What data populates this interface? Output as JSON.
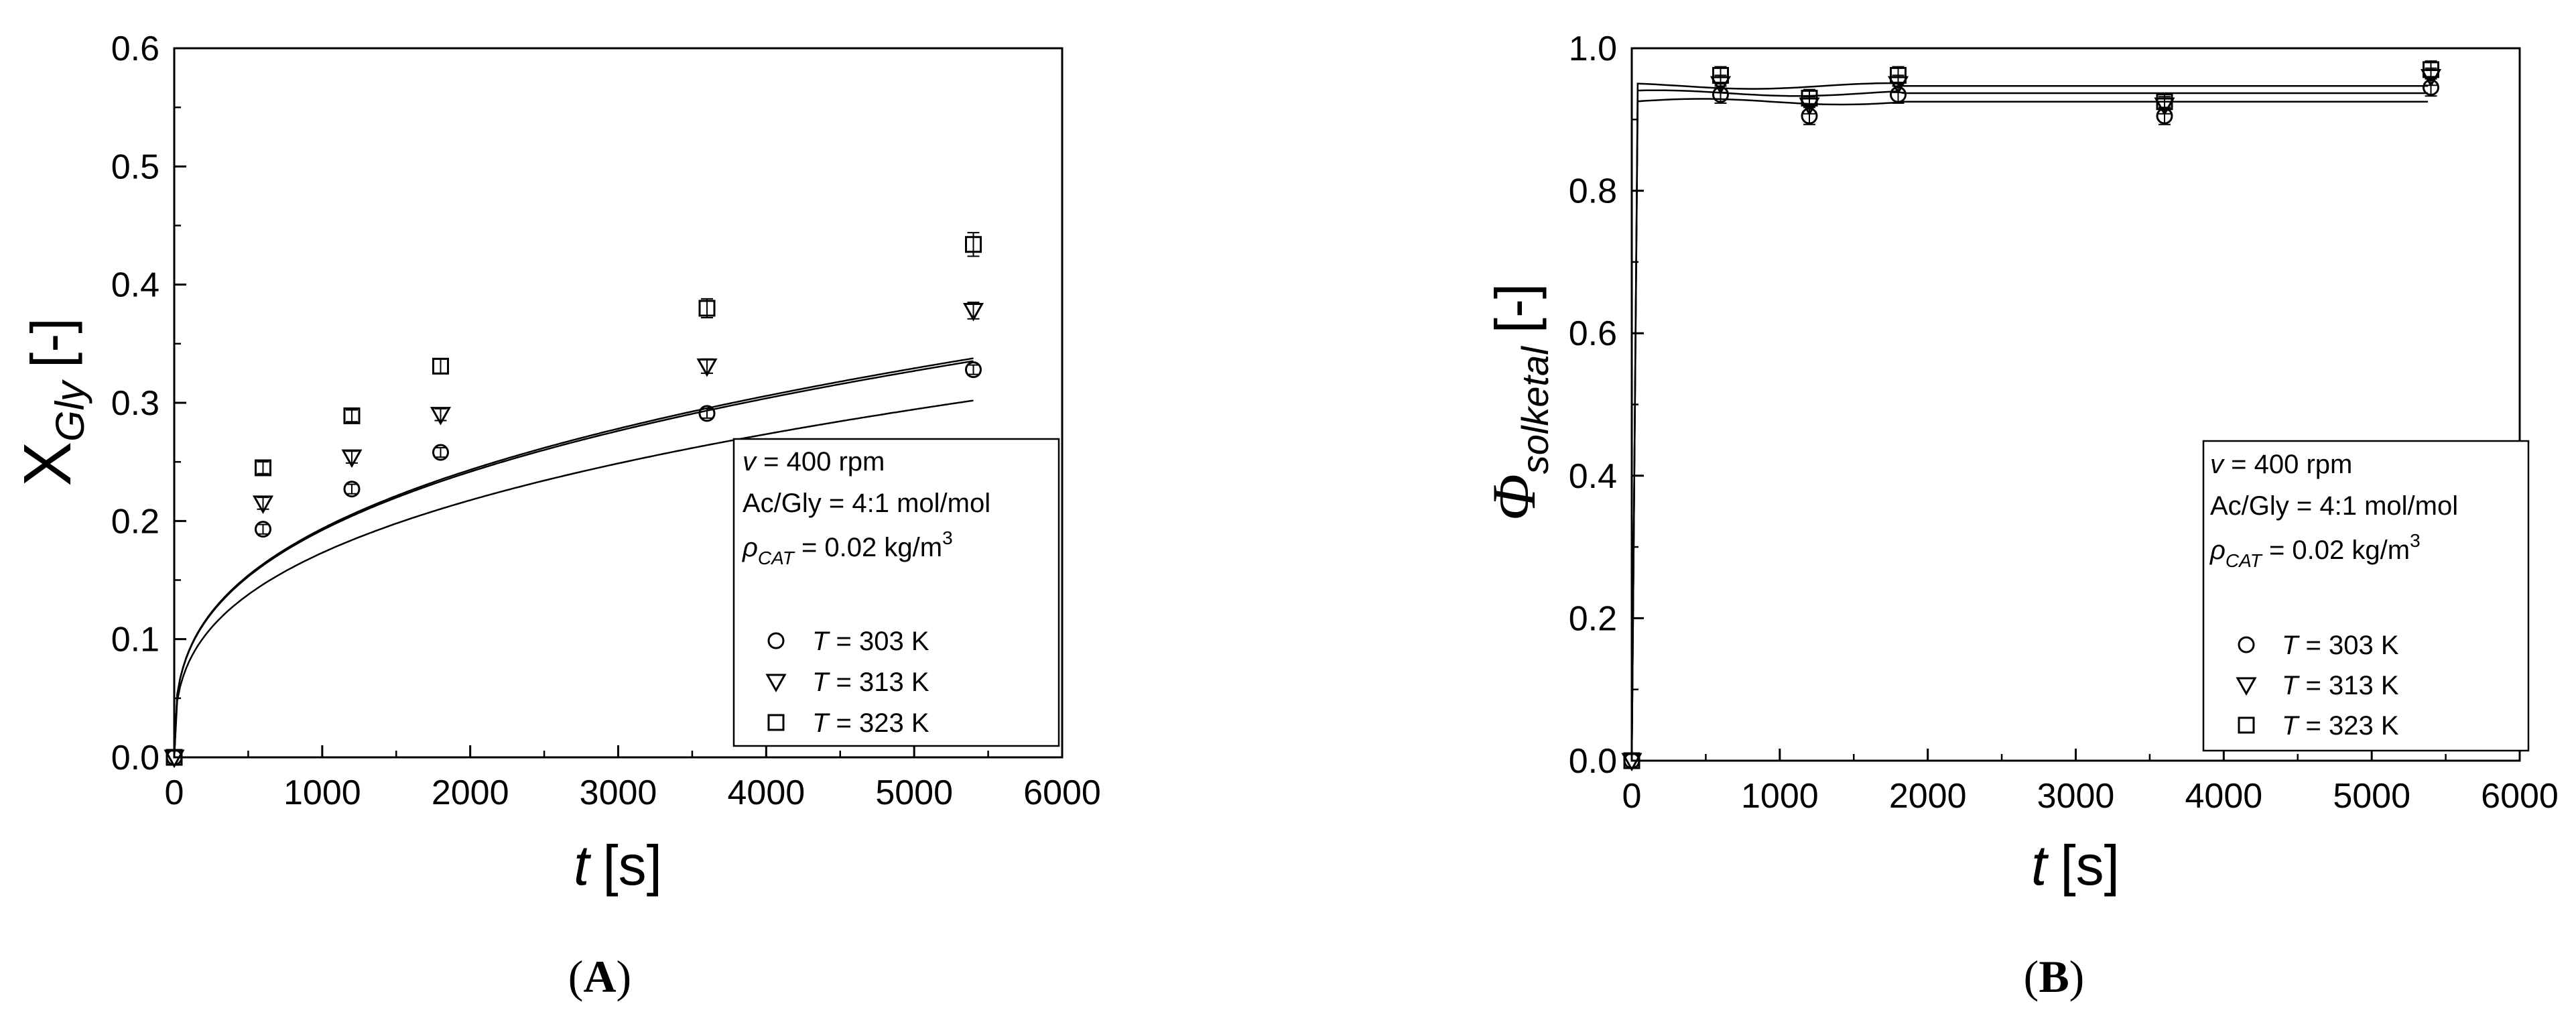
{
  "panels": [
    {
      "label_parts": [
        "(",
        "A",
        ")"
      ],
      "ylabel": {
        "main": "X",
        "sub": "Gly",
        "unit": "[-]"
      },
      "xlabel": {
        "main": "t",
        "unit": "[s]"
      },
      "info_box": {
        "line1": {
          "var": "v",
          "text": " = 400 rpm"
        },
        "line2": "Ac/Gly = 4:1 mol/mol",
        "line3": {
          "var": "ρ",
          "sub": "CAT",
          "text": " = 0.02 kg/m",
          "sup": "3"
        }
      },
      "legend": [
        {
          "marker": "circle",
          "var": "T",
          "text": " = 303 K"
        },
        {
          "marker": "triangle-down",
          "var": "T",
          "text": " = 313 K"
        },
        {
          "marker": "square",
          "var": "T",
          "text": " = 323 K"
        }
      ]
    },
    {
      "label_parts": [
        "(",
        "B",
        ")"
      ],
      "ylabel": {
        "main": "Φ",
        "sub": "solketal",
        "unit": "[-]"
      },
      "xlabel": {
        "main": "t",
        "unit": "[s]"
      },
      "info_box": {
        "line1": {
          "var": "v",
          "text": " = 400 rpm"
        },
        "line2": "Ac/Gly = 4:1 mol/mol",
        "line3": {
          "var": "ρ",
          "sub": "CAT",
          "text": " = 0.02 kg/m",
          "sup": "3"
        }
      },
      "legend": [
        {
          "marker": "circle",
          "var": "T",
          "text": " = 303 K"
        },
        {
          "marker": "triangle-down",
          "var": "T",
          "text": " = 313 K"
        },
        {
          "marker": "square",
          "var": "T",
          "text": " = 323 K"
        }
      ]
    }
  ],
  "chart_data": [
    {
      "type": "scatter",
      "panel": "A",
      "xlim": [
        0,
        6000
      ],
      "ylim": [
        0,
        0.6
      ],
      "xticks": [
        0,
        1000,
        2000,
        3000,
        4000,
        5000,
        6000
      ],
      "yticks": [
        0.0,
        0.1,
        0.2,
        0.3,
        0.4,
        0.5,
        0.6
      ],
      "ytick_labels": [
        "0.0",
        "0.1",
        "0.2",
        "0.3",
        "0.4",
        "0.5",
        "0.6"
      ],
      "grid": false,
      "series": [
        {
          "name": "T = 303 K",
          "marker": "circle",
          "x": [
            0,
            600,
            1200,
            1800,
            3600,
            5400
          ],
          "y": [
            0.0,
            0.193,
            0.227,
            0.258,
            0.291,
            0.328
          ],
          "err": [
            0,
            0.004,
            0.004,
            0.004,
            0.004,
            0.004
          ],
          "fit_a": 0.0228,
          "fit_b": 0.309
        },
        {
          "name": "T = 313 K",
          "marker": "triangle-down",
          "x": [
            0,
            600,
            1200,
            1800,
            3600,
            5400
          ],
          "y": [
            0.0,
            0.215,
            0.254,
            0.29,
            0.331,
            0.378
          ],
          "err": [
            0,
            0.005,
            0.005,
            0.005,
            0.006,
            0.007
          ],
          "fit_a": 0.0213,
          "fit_b": 0.345
        },
        {
          "name": "T = 323 K",
          "marker": "square",
          "x": [
            0,
            600,
            1200,
            1800,
            3600,
            5400
          ],
          "y": [
            0.0,
            0.245,
            0.289,
            0.331,
            0.38,
            0.434
          ],
          "err": [
            0,
            0.005,
            0.005,
            0.006,
            0.008,
            0.01
          ],
          "fit_a": 0.0223,
          "fit_b": 0.343
        }
      ]
    },
    {
      "type": "scatter",
      "panel": "B",
      "xlim": [
        0,
        6000
      ],
      "ylim": [
        0,
        1.0
      ],
      "xticks": [
        0,
        1000,
        2000,
        3000,
        4000,
        5000,
        6000
      ],
      "yticks": [
        0.0,
        0.2,
        0.4,
        0.6,
        0.8,
        1.0
      ],
      "ytick_labels": [
        "0.0",
        "0.2",
        "0.4",
        "0.6",
        "0.8",
        "1.0"
      ],
      "grid": false,
      "series": [
        {
          "name": "T = 303 K",
          "marker": "circle",
          "x": [
            0,
            600,
            1200,
            1800,
            3600,
            5400
          ],
          "y": [
            0.0,
            0.935,
            0.905,
            0.935,
            0.905,
            0.945
          ],
          "err": [
            0,
            0.012,
            0.012,
            0.012,
            0.012,
            0.012
          ],
          "fit_level": 0.925
        },
        {
          "name": "T = 313 K",
          "marker": "triangle-down",
          "x": [
            0,
            600,
            1200,
            1800,
            3600,
            5400
          ],
          "y": [
            0.0,
            0.95,
            0.92,
            0.95,
            0.92,
            0.96
          ],
          "err": [
            0,
            0.012,
            0.012,
            0.012,
            0.012,
            0.012
          ],
          "fit_level": 0.937
        },
        {
          "name": "T = 323 K",
          "marker": "square",
          "x": [
            0,
            600,
            1200,
            1800,
            3600,
            5400
          ],
          "y": [
            0.0,
            0.962,
            0.93,
            0.962,
            0.925,
            0.97
          ],
          "err": [
            0,
            0.012,
            0.012,
            0.012,
            0.012,
            0.012
          ],
          "fit_level": 0.947
        }
      ]
    }
  ]
}
